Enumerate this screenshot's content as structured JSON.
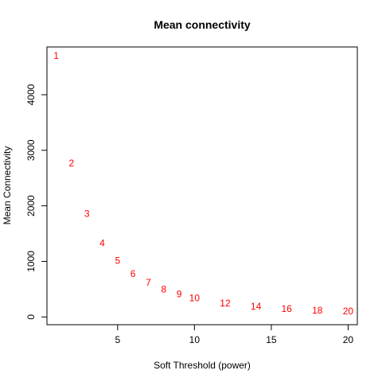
{
  "chart_data": {
    "type": "scatter",
    "title": "Mean connectivity",
    "xlabel": "Soft Threshold (power)",
    "ylabel": "Mean Connectivity",
    "xlim": [
      0.4,
      20.6
    ],
    "ylim": [
      -140,
      4860
    ],
    "x_ticks": [
      5,
      10,
      15,
      20
    ],
    "y_ticks": [
      0,
      1000,
      2000,
      3000,
      4000
    ],
    "grid": false,
    "point_color": "#ff0000",
    "points": [
      {
        "label": "1",
        "x": 1,
        "y": 4700
      },
      {
        "label": "2",
        "x": 2,
        "y": 2770
      },
      {
        "label": "3",
        "x": 3,
        "y": 1860
      },
      {
        "label": "4",
        "x": 4,
        "y": 1330
      },
      {
        "label": "5",
        "x": 5,
        "y": 1010
      },
      {
        "label": "6",
        "x": 6,
        "y": 780
      },
      {
        "label": "7",
        "x": 7,
        "y": 620
      },
      {
        "label": "8",
        "x": 8,
        "y": 500
      },
      {
        "label": "9",
        "x": 9,
        "y": 410
      },
      {
        "label": "10",
        "x": 10,
        "y": 340
      },
      {
        "label": "12",
        "x": 12,
        "y": 250
      },
      {
        "label": "14",
        "x": 14,
        "y": 190
      },
      {
        "label": "16",
        "x": 16,
        "y": 150
      },
      {
        "label": "18",
        "x": 18,
        "y": 120
      },
      {
        "label": "20",
        "x": 20,
        "y": 100
      }
    ]
  }
}
